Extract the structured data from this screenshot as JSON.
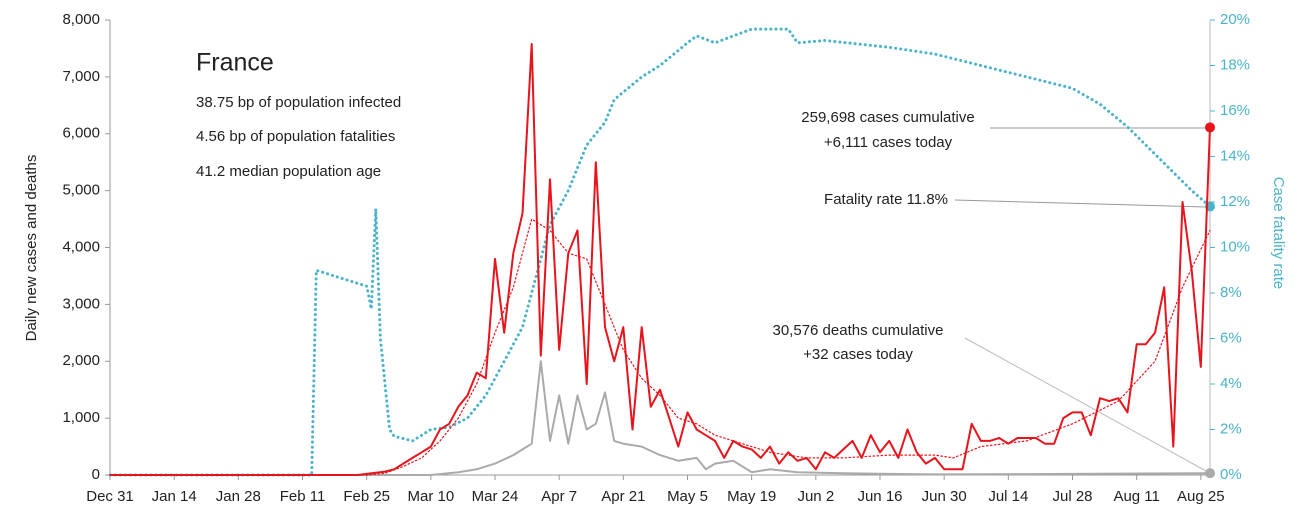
{
  "chart_data": {
    "type": "line",
    "title": "France",
    "subtitle_lines": [
      "38.75 bp of population infected",
      "4.56 bp of population fatalities",
      "41.2 median population age"
    ],
    "y_label": "Daily new cases and deaths",
    "y2_label": "Case fatality rate",
    "xlim": [
      0,
      240
    ],
    "xticks": [
      {
        "value": 0,
        "label": "Dec 31"
      },
      {
        "value": 14,
        "label": "Jan 14"
      },
      {
        "value": 28,
        "label": "Jan 28"
      },
      {
        "value": 42,
        "label": "Feb 11"
      },
      {
        "value": 56,
        "label": "Feb 25"
      },
      {
        "value": 70,
        "label": "Mar 10"
      },
      {
        "value": 84,
        "label": "Mar 24"
      },
      {
        "value": 98,
        "label": "Apr 7"
      },
      {
        "value": 112,
        "label": "Apr 21"
      },
      {
        "value": 126,
        "label": "May 5"
      },
      {
        "value": 140,
        "label": "May 19"
      },
      {
        "value": 154,
        "label": "Jun 2"
      },
      {
        "value": 168,
        "label": "Jun 16"
      },
      {
        "value": 182,
        "label": "Jun 30"
      },
      {
        "value": 196,
        "label": "Jul 14"
      },
      {
        "value": 210,
        "label": "Jul 28"
      },
      {
        "value": 224,
        "label": "Aug 11"
      },
      {
        "value": 238,
        "label": "Aug 25"
      }
    ],
    "ylim": [
      0,
      8000
    ],
    "yticks": [
      0,
      {
        "value": 1000,
        "label": "1,000"
      },
      {
        "value": 2000,
        "label": "2,000"
      },
      {
        "value": 3000,
        "label": "3,000"
      },
      {
        "value": 4000,
        "label": "4,000"
      },
      {
        "value": 5000,
        "label": "5,000"
      },
      {
        "value": 6000,
        "label": "6,000"
      },
      {
        "value": 7000,
        "label": "7,000"
      },
      {
        "value": 8000,
        "label": "8,000"
      }
    ],
    "y2lim": [
      0,
      20
    ],
    "y2ticks": [
      {
        "value": 0,
        "label": "0%"
      },
      {
        "value": 2,
        "label": "2%"
      },
      {
        "value": 4,
        "label": "4%"
      },
      {
        "value": 6,
        "label": "6%"
      },
      {
        "value": 8,
        "label": "8%"
      },
      {
        "value": 10,
        "label": "10%"
      },
      {
        "value": 12,
        "label": "12%"
      },
      {
        "value": 14,
        "label": "14%"
      },
      {
        "value": 16,
        "label": "16%"
      },
      {
        "value": 18,
        "label": "18%"
      },
      {
        "value": 20,
        "label": "20%"
      }
    ],
    "series": [
      {
        "color": "#e8141b",
        "style": "solid",
        "axis": "y",
        "end_marker": true,
        "x": [
          0,
          54,
          56,
          58,
          60,
          62,
          64,
          66,
          68,
          70,
          72,
          74,
          76,
          78,
          80,
          82,
          84,
          86,
          88,
          90,
          92,
          94,
          96,
          98,
          100,
          102,
          104,
          106,
          108,
          110,
          112,
          114,
          116,
          118,
          120,
          122,
          124,
          126,
          128,
          130,
          132,
          134,
          136,
          138,
          140,
          142,
          144,
          146,
          148,
          150,
          152,
          154,
          156,
          158,
          160,
          162,
          164,
          166,
          168,
          170,
          172,
          174,
          176,
          178,
          180,
          182,
          184,
          186,
          188,
          190,
          192,
          194,
          196,
          198,
          200,
          202,
          204,
          206,
          208,
          210,
          212,
          214,
          216,
          218,
          220,
          222,
          224,
          226,
          228,
          230,
          232,
          234,
          236,
          238,
          240
        ],
        "values": [
          0,
          0,
          20,
          40,
          60,
          100,
          200,
          300,
          400,
          500,
          800,
          900,
          1200,
          1400,
          1800,
          1700,
          3800,
          2500,
          3900,
          4600,
          7578,
          2100,
          5200,
          2200,
          3900,
          4300,
          1600,
          5500,
          2600,
          2000,
          2600,
          800,
          2600,
          1200,
          1500,
          1000,
          500,
          1100,
          800,
          700,
          600,
          300,
          600,
          500,
          450,
          300,
          500,
          200,
          400,
          250,
          300,
          100,
          400,
          300,
          450,
          600,
          300,
          700,
          400,
          600,
          300,
          800,
          400,
          200,
          300,
          100,
          100,
          100,
          900,
          600,
          600,
          650,
          550,
          650,
          650,
          650,
          550,
          550,
          1000,
          1100,
          1100,
          700,
          1350,
          1300,
          1350,
          1100,
          2300,
          2300,
          2500,
          3300,
          500,
          4800,
          3600,
          1900,
          6111
        ]
      },
      {
        "color": "#e8141b",
        "style": "dotted",
        "axis": "y",
        "end_marker": false,
        "x": [
          0,
          56,
          60,
          64,
          68,
          72,
          76,
          80,
          84,
          88,
          92,
          96,
          100,
          104,
          108,
          112,
          116,
          120,
          124,
          128,
          132,
          136,
          140,
          144,
          148,
          152,
          160,
          170,
          180,
          184,
          190,
          200,
          210,
          220,
          228,
          234,
          240
        ],
        "values": [
          0,
          0,
          30,
          150,
          300,
          600,
          1000,
          1600,
          2500,
          3300,
          4500,
          4300,
          3900,
          3800,
          3000,
          2200,
          1700,
          1400,
          1000,
          900,
          700,
          600,
          500,
          400,
          350,
          300,
          300,
          350,
          350,
          300,
          500,
          600,
          900,
          1300,
          2000,
          3300,
          4300
        ]
      },
      {
        "color": "#aaaaaa",
        "style": "solid",
        "axis": "y",
        "end_marker": true,
        "x": [
          0,
          70,
          76,
          80,
          84,
          88,
          90,
          92,
          94,
          96,
          98,
          100,
          102,
          104,
          106,
          108,
          110,
          112,
          116,
          120,
          124,
          128,
          130,
          132,
          136,
          140,
          144,
          150,
          160,
          170,
          180,
          200,
          240
        ],
        "values": [
          0,
          0,
          50,
          100,
          200,
          350,
          450,
          550,
          2000,
          600,
          1400,
          550,
          1400,
          800,
          900,
          1450,
          600,
          550,
          500,
          350,
          250,
          300,
          100,
          200,
          250,
          50,
          100,
          50,
          30,
          20,
          10,
          15,
          32
        ]
      },
      {
        "color": "#4bb3c8",
        "style": "dotted",
        "axis": "y2",
        "end_marker": true,
        "x": [
          0,
          44,
          45,
          56,
          57,
          58,
          59,
          61,
          62,
          66,
          70,
          74,
          78,
          82,
          86,
          90,
          94,
          96,
          100,
          104,
          108,
          110,
          116,
          120,
          126,
          128,
          132,
          136,
          140,
          148,
          150,
          156,
          170,
          180,
          190,
          200,
          210,
          216,
          222,
          230,
          236,
          240
        ],
        "values": [
          0,
          0,
          9.0,
          8.3,
          7.3,
          11.7,
          6.0,
          2.0,
          1.7,
          1.5,
          2.0,
          2.1,
          2.5,
          3.5,
          5.0,
          6.5,
          9.5,
          11.0,
          12.5,
          14.5,
          15.5,
          16.5,
          17.5,
          18.0,
          19.0,
          19.3,
          19.0,
          19.3,
          19.6,
          19.6,
          19.0,
          19.1,
          18.8,
          18.5,
          18.0,
          17.5,
          17.0,
          16.3,
          15.3,
          13.7,
          12.5,
          11.8
        ]
      }
    ],
    "annotations": [
      "259,698 cases cumulative",
      "+6,111 cases today",
      "Fatality rate 11.8%",
      "30,576 deaths cumulative",
      "+32 cases today"
    ]
  }
}
